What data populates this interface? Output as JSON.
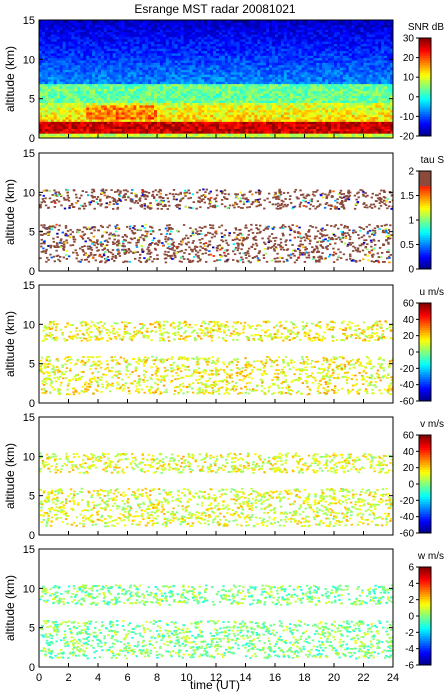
{
  "figure_title": "Esrange MST radar 20081021",
  "xlabel": "time (UT)",
  "chart_data": [
    {
      "type": "heatmap",
      "title": "Esrange MST radar 20081021",
      "quantity": "SNR",
      "colorbar_label": "SNR dB",
      "ylabel": "altitude (km)",
      "xlabel": "",
      "xlim": [
        0,
        24
      ],
      "ylim": [
        0,
        15
      ],
      "clim": [
        -20,
        30
      ],
      "colorbar_ticks": [
        -20,
        -10,
        0,
        10,
        20,
        30
      ],
      "colorbar_tick_labels": [
        "-20",
        "-10",
        "0",
        "10",
        "20",
        "30"
      ],
      "y_ticks": [
        "0",
        "5",
        "10",
        "15"
      ],
      "fill": "full",
      "colormap": "jet"
    },
    {
      "type": "heatmap",
      "quantity": "tau",
      "colorbar_label": "tau S",
      "ylabel": "altitude (km)",
      "xlabel": "",
      "xlim": [
        0,
        24
      ],
      "ylim": [
        0,
        15
      ],
      "clim": [
        0,
        2
      ],
      "colorbar_ticks": [
        0,
        0.5,
        1,
        1.5,
        2
      ],
      "colorbar_tick_labels": [
        "0",
        "0.5",
        "1",
        "1.5",
        "2"
      ],
      "y_ticks": [
        "0",
        "5",
        "10",
        "15"
      ],
      "fill": "sparse",
      "colormap": "jet"
    },
    {
      "type": "heatmap",
      "quantity": "u",
      "colorbar_label": "u m/s",
      "ylabel": "altitude (km)",
      "xlabel": "",
      "xlim": [
        0,
        24
      ],
      "ylim": [
        0,
        15
      ],
      "clim": [
        -60,
        60
      ],
      "colorbar_ticks": [
        -60,
        -40,
        -20,
        0,
        20,
        40,
        60
      ],
      "colorbar_tick_labels": [
        "-60",
        "-40",
        "-20",
        "0",
        "20",
        "40",
        "60"
      ],
      "y_ticks": [
        "0",
        "5",
        "10",
        "15"
      ],
      "fill": "sparse",
      "colormap": "jet"
    },
    {
      "type": "heatmap",
      "quantity": "v",
      "colorbar_label": "v m/s",
      "ylabel": "altitude (km)",
      "xlabel": "",
      "xlim": [
        0,
        24
      ],
      "ylim": [
        0,
        15
      ],
      "clim": [
        -60,
        60
      ],
      "colorbar_ticks": [
        -60,
        -40,
        -20,
        0,
        20,
        40,
        60
      ],
      "colorbar_tick_labels": [
        "-60",
        "-40",
        "-20",
        "0",
        "20",
        "40",
        "60"
      ],
      "y_ticks": [
        "0",
        "5",
        "10",
        "15"
      ],
      "fill": "sparse",
      "colormap": "jet"
    },
    {
      "type": "heatmap",
      "quantity": "w",
      "colorbar_label": "w m/s",
      "ylabel": "altitude (km)",
      "xlabel": "time (UT)",
      "xlim": [
        0,
        24
      ],
      "ylim": [
        0,
        15
      ],
      "clim": [
        -6,
        6
      ],
      "colorbar_ticks": [
        -6,
        -4,
        -2,
        0,
        2,
        4,
        6
      ],
      "colorbar_tick_labels": [
        "-6",
        "-4",
        "-2",
        "0",
        "2",
        "4",
        "6"
      ],
      "y_ticks": [
        "0",
        "5",
        "10",
        "15"
      ],
      "x_ticks": [
        "0",
        "2",
        "4",
        "6",
        "8",
        "10",
        "12",
        "14",
        "16",
        "18",
        "20",
        "22",
        "24"
      ],
      "fill": "sparse",
      "colormap": "jet"
    }
  ]
}
